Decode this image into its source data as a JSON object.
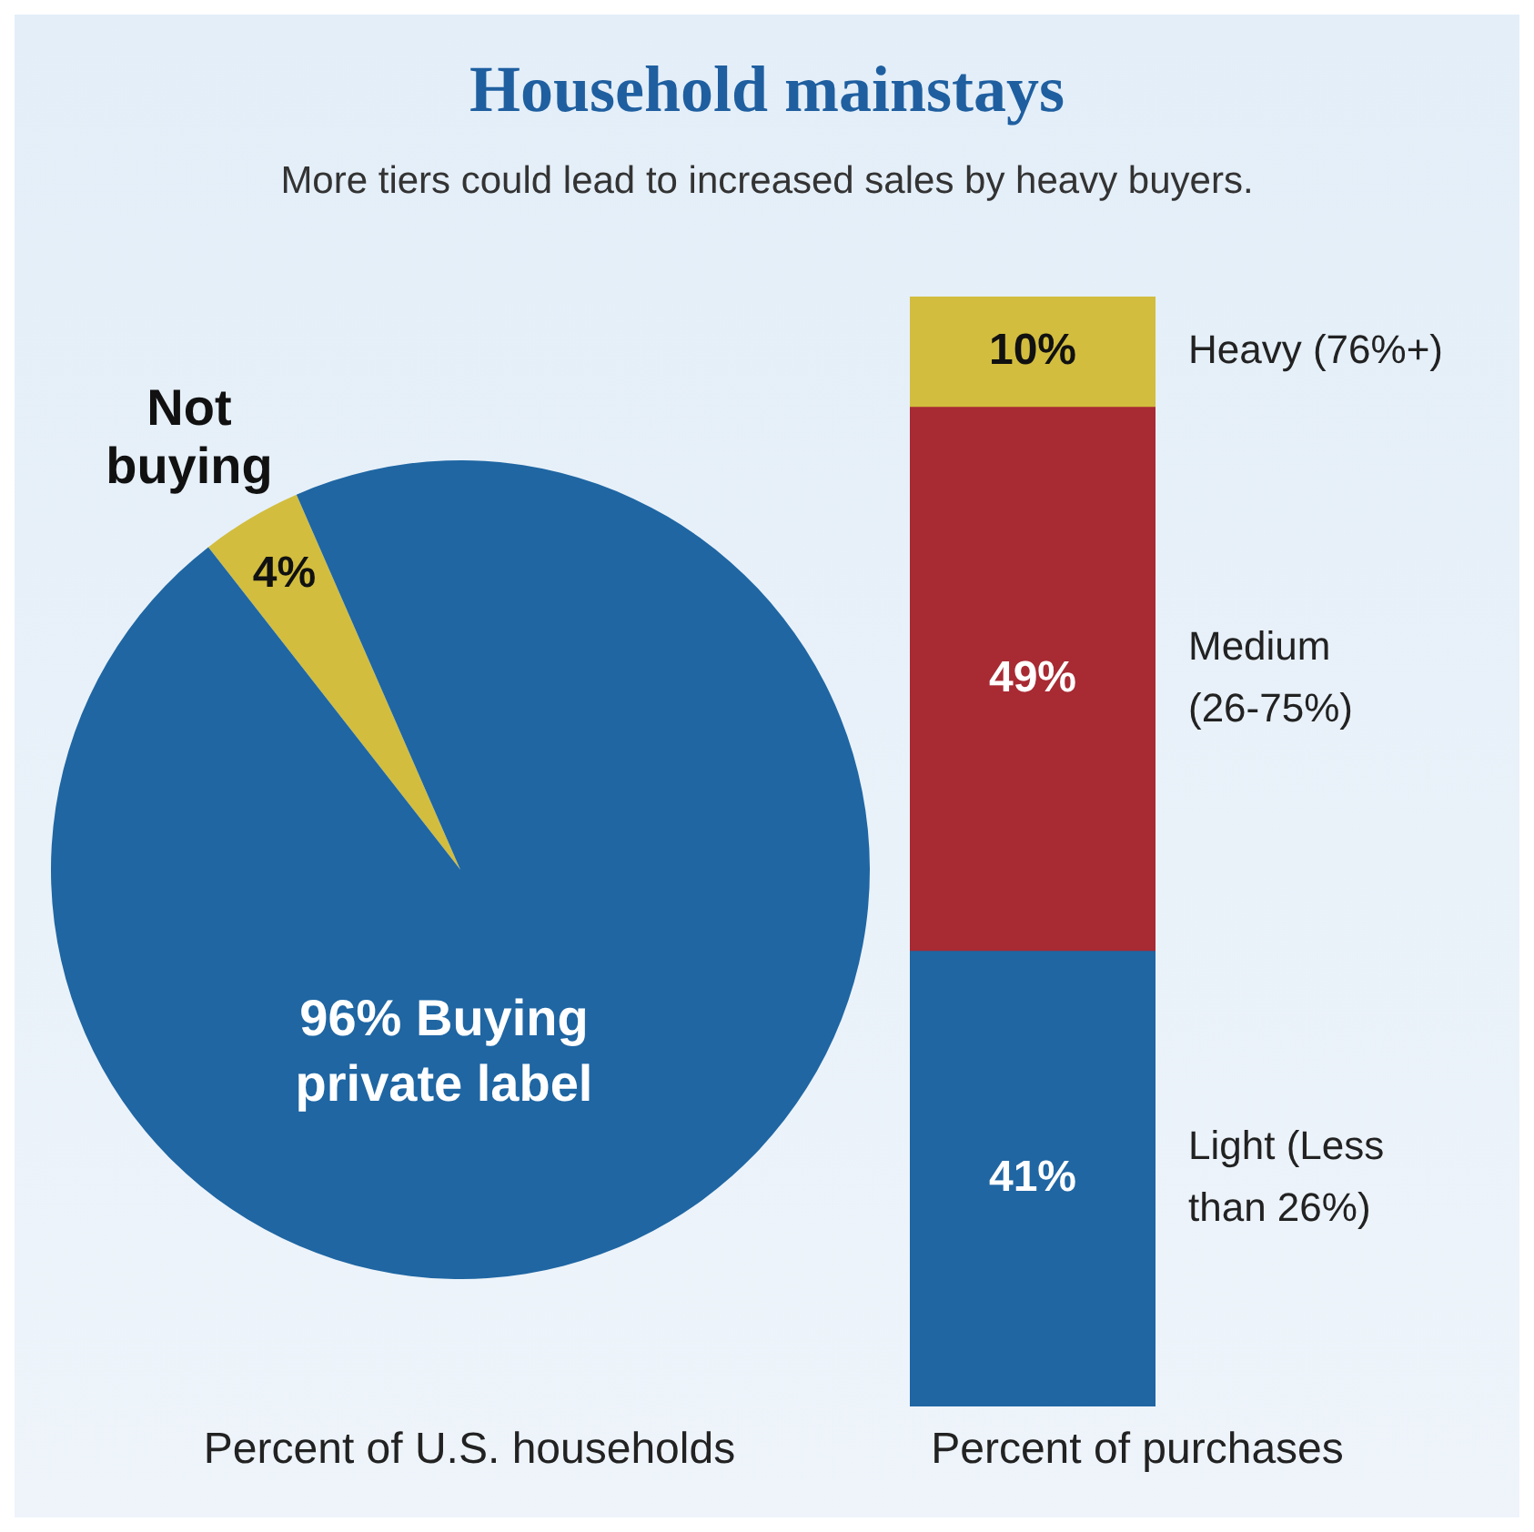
{
  "chart_data": [
    {
      "type": "pie",
      "title": "Household mainstays",
      "subtitle": "More tiers could lead to increased sales by heavy buyers.",
      "xlabel": "Percent of U.S. households",
      "categories": [
        "Not buying",
        "Buying private label"
      ],
      "values": [
        4,
        96
      ],
      "value_labels": [
        "4%",
        "96%"
      ],
      "colors": [
        "#d2bd3e",
        "#1f66a3"
      ],
      "legend": false
    },
    {
      "type": "bar",
      "stacked": true,
      "xlabel": "Percent of purchases",
      "categories": [
        null
      ],
      "tick_labels": false,
      "legend": false,
      "series": [
        {
          "name": "Light (Less than 26%)",
          "color": "#1f66a3",
          "values": [
            41
          ],
          "value_labels": [
            "41%"
          ]
        },
        {
          "name": "Medium (26-75%)",
          "color": "#a82a33",
          "values": [
            49
          ],
          "value_labels": [
            "49%"
          ]
        },
        {
          "name": "Heavy (76%+)",
          "color": "#d2bd3e",
          "values": [
            10
          ],
          "value_labels": [
            "10%"
          ]
        }
      ]
    }
  ]
}
